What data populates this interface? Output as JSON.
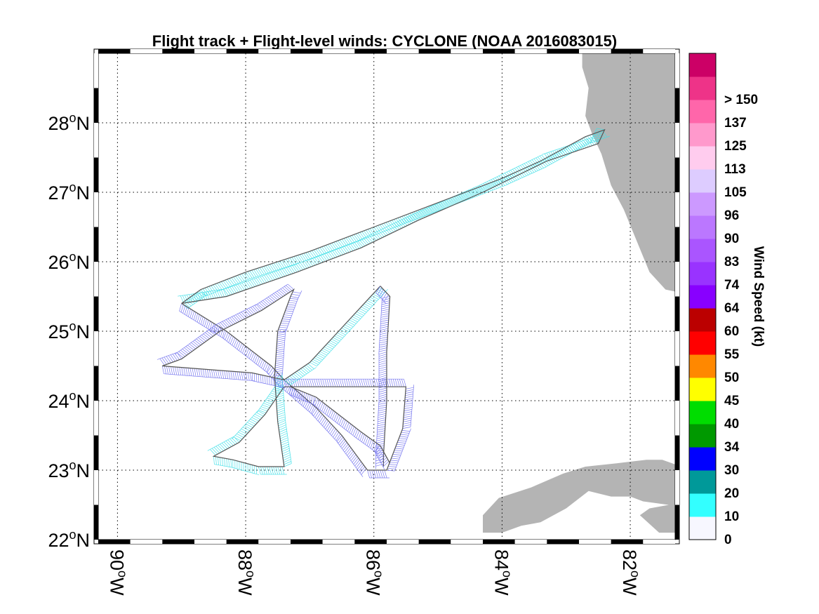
{
  "title": "Flight track + Flight-level winds: CYCLONE (NOAA 2016083015)",
  "map": {
    "lat_range": [
      22,
      29
    ],
    "lon_range": [
      -90.3,
      -81.3
    ],
    "lat_ticks": [
      {
        "value": 22,
        "label_deg": "22",
        "label_hem": "N"
      },
      {
        "value": 23,
        "label_deg": "23",
        "label_hem": "N"
      },
      {
        "value": 24,
        "label_deg": "24",
        "label_hem": "N"
      },
      {
        "value": 25,
        "label_deg": "25",
        "label_hem": "N"
      },
      {
        "value": 26,
        "label_deg": "26",
        "label_hem": "N"
      },
      {
        "value": 27,
        "label_deg": "27",
        "label_hem": "N"
      },
      {
        "value": 28,
        "label_deg": "28",
        "label_hem": "N"
      }
    ],
    "lon_ticks": [
      {
        "value": -90,
        "label_deg": "90",
        "label_hem": "W"
      },
      {
        "value": -88,
        "label_deg": "88",
        "label_hem": "W"
      },
      {
        "value": -86,
        "label_deg": "86",
        "label_hem": "W"
      },
      {
        "value": -84,
        "label_deg": "84",
        "label_hem": "W"
      },
      {
        "value": -82,
        "label_deg": "82",
        "label_hem": "W"
      }
    ],
    "grid": "dotted",
    "land_color": "#b4b4b4",
    "land": [
      [
        [
          -82.75,
          29
        ],
        [
          -81.2,
          29
        ],
        [
          -81.2,
          25.55
        ],
        [
          -81.45,
          25.6
        ],
        [
          -81.7,
          25.85
        ],
        [
          -81.9,
          26.3
        ],
        [
          -82.1,
          26.75
        ],
        [
          -82.3,
          27.1
        ],
        [
          -82.45,
          27.55
        ],
        [
          -82.6,
          27.85
        ],
        [
          -82.7,
          28.1
        ],
        [
          -82.65,
          28.5
        ],
        [
          -82.75,
          28.8
        ]
      ],
      [
        [
          -84.3,
          22.1
        ],
        [
          -84.3,
          22.35
        ],
        [
          -84.05,
          22.6
        ],
        [
          -83.55,
          22.75
        ],
        [
          -83.05,
          22.95
        ],
        [
          -82.7,
          23.05
        ],
        [
          -82.2,
          23.1
        ],
        [
          -81.75,
          23.15
        ],
        [
          -81.5,
          23.15
        ],
        [
          -81.2,
          23.05
        ],
        [
          -81.2,
          22.1
        ],
        [
          -81.55,
          22.1
        ],
        [
          -81.85,
          22.35
        ],
        [
          -81.7,
          22.45
        ],
        [
          -81.4,
          22.5
        ],
        [
          -81.8,
          22.55
        ],
        [
          -82.0,
          22.62
        ],
        [
          -82.3,
          22.62
        ],
        [
          -82.65,
          22.7
        ],
        [
          -83.0,
          22.45
        ],
        [
          -83.4,
          22.25
        ],
        [
          -83.7,
          22.2
        ],
        [
          -84.0,
          22.1
        ]
      ]
    ],
    "track_segments": [
      {
        "color": "#40e0e8",
        "points": [
          [
            -89.0,
            25.4
          ],
          [
            -88.7,
            25.6
          ],
          [
            -88.0,
            25.85
          ],
          [
            -87.0,
            26.15
          ],
          [
            -86.0,
            26.5
          ],
          [
            -85.0,
            26.85
          ],
          [
            -84.0,
            27.2
          ],
          [
            -83.4,
            27.45
          ],
          [
            -82.7,
            27.8
          ],
          [
            -82.4,
            27.9
          ],
          [
            -82.5,
            27.7
          ],
          [
            -83.3,
            27.45
          ],
          [
            -84.3,
            27.0
          ],
          [
            -85.3,
            26.6
          ],
          [
            -86.2,
            26.2
          ],
          [
            -87.2,
            25.85
          ],
          [
            -88.3,
            25.5
          ],
          [
            -89.0,
            25.4
          ]
        ]
      },
      {
        "color": "#7070ee",
        "points": [
          [
            -89.0,
            25.4
          ],
          [
            -88.3,
            25.0
          ],
          [
            -87.6,
            24.5
          ],
          [
            -87.4,
            24.3
          ],
          [
            -86.9,
            23.9
          ],
          [
            -86.5,
            23.5
          ],
          [
            -86.1,
            23.0
          ],
          [
            -85.8,
            23.0
          ],
          [
            -85.55,
            23.6
          ],
          [
            -85.5,
            24.2
          ],
          [
            -86.6,
            24.2
          ],
          [
            -87.4,
            24.2
          ]
        ]
      },
      {
        "color": "#40e0e8",
        "points": [
          [
            -87.4,
            24.2
          ],
          [
            -87.7,
            23.8
          ],
          [
            -88.1,
            23.4
          ],
          [
            -88.5,
            23.2
          ],
          [
            -88.2,
            23.15
          ],
          [
            -87.8,
            23.05
          ],
          [
            -87.4,
            23.05
          ],
          [
            -87.5,
            23.7
          ],
          [
            -87.55,
            24.35
          ]
        ]
      },
      {
        "color": "#7070ee",
        "points": [
          [
            -87.55,
            24.35
          ],
          [
            -87.5,
            25.0
          ],
          [
            -87.3,
            25.5
          ],
          [
            -87.25,
            25.6
          ],
          [
            -87.75,
            25.3
          ],
          [
            -88.4,
            25.0
          ],
          [
            -89.0,
            24.6
          ],
          [
            -89.3,
            24.5
          ],
          [
            -88.6,
            24.45
          ],
          [
            -87.9,
            24.4
          ],
          [
            -87.4,
            24.3
          ]
        ]
      },
      {
        "color": "#40e0e8",
        "points": [
          [
            -87.4,
            24.3
          ],
          [
            -87.0,
            24.55
          ],
          [
            -86.55,
            25.0
          ],
          [
            -86.2,
            25.35
          ],
          [
            -85.9,
            25.65
          ]
        ]
      },
      {
        "color": "#7070ee",
        "points": [
          [
            -85.9,
            25.65
          ],
          [
            -85.75,
            25.5
          ],
          [
            -85.8,
            24.7
          ],
          [
            -85.8,
            24.0
          ],
          [
            -85.85,
            23.2
          ],
          [
            -85.85,
            23.05
          ]
        ]
      },
      {
        "color": "#7070ee",
        "points": [
          [
            -87.3,
            24.2
          ],
          [
            -86.9,
            24.05
          ],
          [
            -86.2,
            23.55
          ],
          [
            -85.9,
            23.35
          ],
          [
            -85.75,
            23.1
          ]
        ]
      }
    ],
    "legend_entries_not_drawn": []
  },
  "colorbar": {
    "title": "Wind Speed (kt)",
    "bins": [
      {
        "color": "#f7f7ff",
        "label": "0"
      },
      {
        "color": "#33ffff",
        "label": "10"
      },
      {
        "color": "#009999",
        "label": "20"
      },
      {
        "color": "#0000ff",
        "label": "30"
      },
      {
        "color": "#009900",
        "label": "34"
      },
      {
        "color": "#00dd00",
        "label": "40"
      },
      {
        "color": "#ffff00",
        "label": "45"
      },
      {
        "color": "#ff8800",
        "label": "50"
      },
      {
        "color": "#ff0000",
        "label": "55"
      },
      {
        "color": "#bb0000",
        "label": "60"
      },
      {
        "color": "#8800ff",
        "label": "64"
      },
      {
        "color": "#9933ff",
        "label": "74"
      },
      {
        "color": "#aa55ff",
        "label": "83"
      },
      {
        "color": "#bb77ff",
        "label": "90"
      },
      {
        "color": "#cc99ff",
        "label": "96"
      },
      {
        "color": "#ddccff",
        "label": "105"
      },
      {
        "color": "#ffccee",
        "label": "113"
      },
      {
        "color": "#ff99cc",
        "label": "125"
      },
      {
        "color": "#ff66aa",
        "label": "137"
      },
      {
        "color": "#ee3388",
        "label": "> 150"
      },
      {
        "color": "#cc0066",
        "label": ""
      }
    ]
  }
}
